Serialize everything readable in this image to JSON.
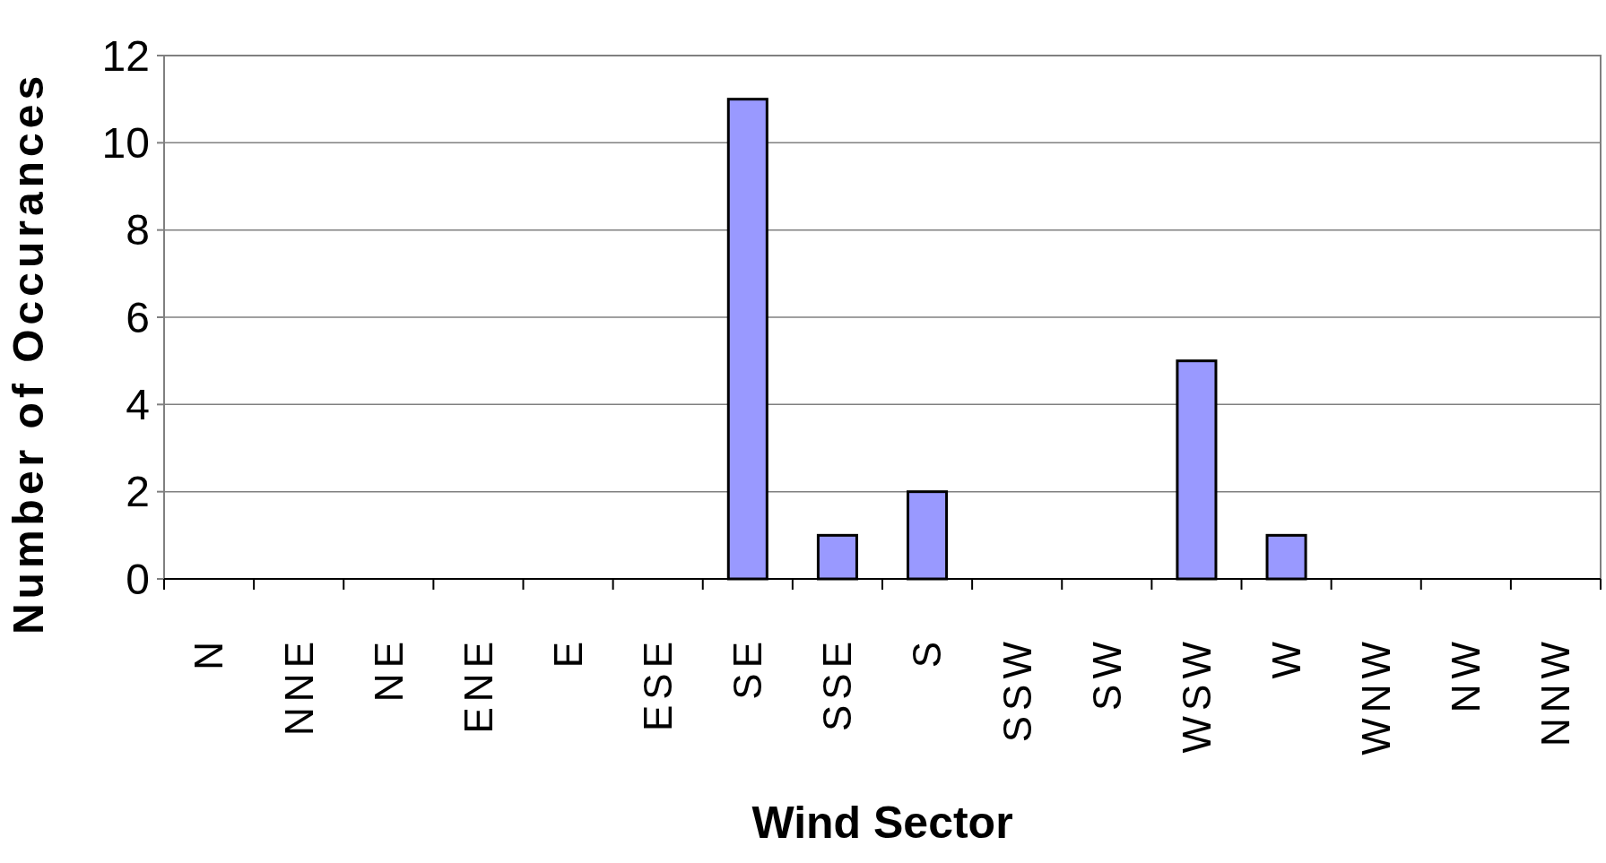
{
  "chart_data": {
    "type": "bar",
    "xlabel": "Wind Sector",
    "ylabel": "Number of Occurances",
    "categories": [
      "N",
      "NNE",
      "NE",
      "ENE",
      "E",
      "ESE",
      "SE",
      "SSE",
      "S",
      "SSW",
      "SW",
      "WSW",
      "W",
      "WNW",
      "NW",
      "NNW"
    ],
    "values": [
      0,
      0,
      0,
      0,
      0,
      0,
      11,
      1,
      2,
      0,
      0,
      5,
      1,
      0,
      0,
      0
    ],
    "color": "#9999ff",
    "ylim": [
      0,
      12
    ],
    "yticks": [
      0,
      2,
      4,
      6,
      8,
      10,
      12
    ],
    "grid": "y"
  }
}
